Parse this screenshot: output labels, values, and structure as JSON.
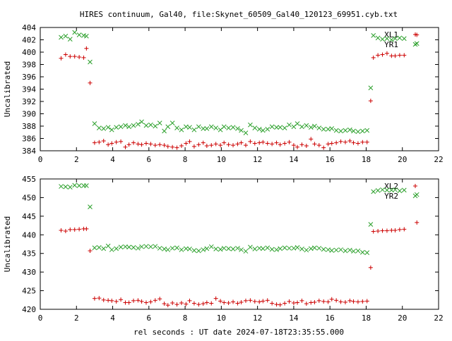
{
  "figure_title": "HIRES continuum, Gal40, file:Skynet_60509_Gal40_120123_69951.cyb.txt",
  "xlabel": "rel seconds : UT date 2024-07-18T23:35:55.000",
  "colors": {
    "XL": "#cc0000",
    "YR": "#2ca02c",
    "axis": "#000000",
    "text": "#000000"
  },
  "chart_data": [
    {
      "type": "scatter",
      "title": "",
      "xlabel": "",
      "ylabel": "Uncalibrated",
      "xlim": [
        0,
        22
      ],
      "ylim": [
        384,
        404
      ],
      "xticks": [
        0,
        2,
        4,
        6,
        8,
        10,
        12,
        14,
        16,
        18,
        20,
        22
      ],
      "yticks": [
        384,
        386,
        388,
        390,
        392,
        394,
        396,
        398,
        400,
        402,
        404
      ],
      "legend": "top-right",
      "grid": false,
      "series": [
        {
          "name": "XL1",
          "marker": "plus",
          "color": "#cc0000",
          "x": [
            1.15,
            1.4,
            1.65,
            1.9,
            2.15,
            2.4,
            2.55,
            2.75,
            3.0,
            3.25,
            3.5,
            3.75,
            3.95,
            4.2,
            4.45,
            4.7,
            4.9,
            5.15,
            5.4,
            5.6,
            5.85,
            6.1,
            6.35,
            6.6,
            6.85,
            7.05,
            7.3,
            7.55,
            7.8,
            8.05,
            8.25,
            8.5,
            8.75,
            9.0,
            9.2,
            9.45,
            9.7,
            9.95,
            10.15,
            10.4,
            10.65,
            10.9,
            11.1,
            11.35,
            11.6,
            11.85,
            12.1,
            12.3,
            12.55,
            12.8,
            13.05,
            13.25,
            13.5,
            13.75,
            14.0,
            14.2,
            14.45,
            14.7,
            14.95,
            15.15,
            15.4,
            15.65,
            15.9,
            16.1,
            16.35,
            16.6,
            16.85,
            17.1,
            17.3,
            17.55,
            17.8,
            18.05,
            18.25,
            18.4,
            18.65,
            18.9,
            19.15,
            19.4,
            19.6,
            19.85,
            20.1,
            20.8
          ],
          "y": [
            399.0,
            399.6,
            399.3,
            399.3,
            399.2,
            399.1,
            400.6,
            395.0,
            385.3,
            385.4,
            385.6,
            385.0,
            385.2,
            385.4,
            385.5,
            384.6,
            385.0,
            385.3,
            385.1,
            385.0,
            385.2,
            385.1,
            384.9,
            385.0,
            384.9,
            384.7,
            384.6,
            384.5,
            384.8,
            385.2,
            385.5,
            384.7,
            385.0,
            385.3,
            384.8,
            384.9,
            385.1,
            384.9,
            385.3,
            385.0,
            384.9,
            385.1,
            385.3,
            384.9,
            385.5,
            385.2,
            385.3,
            385.4,
            385.2,
            385.1,
            385.3,
            385.0,
            385.2,
            385.4,
            384.9,
            384.6,
            385.0,
            384.8,
            385.9,
            385.1,
            384.9,
            384.5,
            385.1,
            385.2,
            385.3,
            385.5,
            385.4,
            385.6,
            385.3,
            385.2,
            385.4,
            385.4,
            392.1,
            399.1,
            399.5,
            399.6,
            399.8,
            399.4,
            399.4,
            399.5,
            399.5,
            402.8
          ]
        },
        {
          "name": "YR1",
          "marker": "cross",
          "color": "#2ca02c",
          "x": [
            1.15,
            1.4,
            1.65,
            1.9,
            2.15,
            2.4,
            2.55,
            2.75,
            3.0,
            3.25,
            3.5,
            3.75,
            3.95,
            4.2,
            4.45,
            4.7,
            4.9,
            5.15,
            5.4,
            5.6,
            5.85,
            6.1,
            6.35,
            6.6,
            6.85,
            7.05,
            7.3,
            7.55,
            7.8,
            8.05,
            8.25,
            8.5,
            8.75,
            9.0,
            9.2,
            9.45,
            9.7,
            9.95,
            10.15,
            10.4,
            10.65,
            10.9,
            11.1,
            11.35,
            11.6,
            11.85,
            12.1,
            12.3,
            12.55,
            12.8,
            13.05,
            13.25,
            13.5,
            13.75,
            14.0,
            14.2,
            14.45,
            14.7,
            14.95,
            15.15,
            15.4,
            15.65,
            15.9,
            16.1,
            16.35,
            16.6,
            16.85,
            17.1,
            17.3,
            17.55,
            17.8,
            18.05,
            18.25,
            18.4,
            18.65,
            18.9,
            19.15,
            19.4,
            19.6,
            19.85,
            20.1,
            20.8
          ],
          "y": [
            402.4,
            402.6,
            402.1,
            403.2,
            402.8,
            402.7,
            402.6,
            398.4,
            388.4,
            387.7,
            387.6,
            387.8,
            387.4,
            387.8,
            387.9,
            388.1,
            387.9,
            388.1,
            388.3,
            388.7,
            388.1,
            388.2,
            388.0,
            388.5,
            387.2,
            387.9,
            388.5,
            387.7,
            387.4,
            387.9,
            387.8,
            387.4,
            387.9,
            387.6,
            387.6,
            387.9,
            387.7,
            387.4,
            387.9,
            387.7,
            387.8,
            387.6,
            387.3,
            386.9,
            388.2,
            387.7,
            387.5,
            387.3,
            387.5,
            387.9,
            387.8,
            387.8,
            387.7,
            388.2,
            387.9,
            388.4,
            387.9,
            388.1,
            387.8,
            388.0,
            387.7,
            387.5,
            387.5,
            387.6,
            387.3,
            387.2,
            387.3,
            387.4,
            387.2,
            387.1,
            387.2,
            387.3,
            394.2,
            402.7,
            402.3,
            402.1,
            402.2,
            402.0,
            402.2,
            402.3,
            402.2,
            401.4
          ]
        }
      ]
    },
    {
      "type": "scatter",
      "title": "",
      "xlabel": "rel seconds : UT date 2024-07-18T23:35:55.000",
      "ylabel": "Uncalibrated",
      "xlim": [
        0,
        22
      ],
      "ylim": [
        420,
        455
      ],
      "xticks": [
        0,
        2,
        4,
        6,
        8,
        10,
        12,
        14,
        16,
        18,
        20,
        22
      ],
      "yticks": [
        420,
        425,
        430,
        435,
        440,
        445,
        450,
        455
      ],
      "legend": "top-right",
      "grid": false,
      "series": [
        {
          "name": "XL2",
          "marker": "plus",
          "color": "#cc0000",
          "x": [
            1.15,
            1.4,
            1.65,
            1.9,
            2.15,
            2.4,
            2.55,
            2.75,
            3.0,
            3.25,
            3.5,
            3.75,
            3.95,
            4.2,
            4.45,
            4.7,
            4.9,
            5.15,
            5.4,
            5.6,
            5.85,
            6.1,
            6.35,
            6.6,
            6.85,
            7.05,
            7.3,
            7.55,
            7.8,
            8.05,
            8.25,
            8.5,
            8.75,
            9.0,
            9.2,
            9.45,
            9.7,
            9.95,
            10.15,
            10.4,
            10.65,
            10.9,
            11.1,
            11.35,
            11.6,
            11.85,
            12.1,
            12.3,
            12.55,
            12.8,
            13.05,
            13.25,
            13.5,
            13.75,
            14.0,
            14.2,
            14.45,
            14.7,
            14.95,
            15.15,
            15.4,
            15.65,
            15.9,
            16.1,
            16.35,
            16.6,
            16.85,
            17.1,
            17.3,
            17.55,
            17.8,
            18.05,
            18.25,
            18.4,
            18.65,
            18.9,
            19.15,
            19.4,
            19.6,
            19.85,
            20.1,
            20.8
          ],
          "y": [
            441.2,
            441.0,
            441.4,
            441.4,
            441.5,
            441.6,
            441.6,
            435.7,
            422.9,
            423.0,
            422.5,
            422.4,
            422.3,
            422.1,
            422.6,
            421.8,
            421.8,
            422.3,
            422.4,
            422.1,
            421.8,
            422.0,
            422.4,
            422.8,
            421.5,
            421.1,
            421.7,
            421.3,
            421.7,
            421.4,
            422.3,
            421.6,
            421.3,
            421.5,
            421.8,
            421.6,
            422.9,
            422.2,
            421.8,
            421.7,
            422.0,
            421.6,
            421.9,
            422.3,
            422.4,
            422.1,
            422.0,
            422.2,
            422.4,
            421.6,
            421.3,
            421.2,
            421.6,
            422.1,
            421.7,
            421.8,
            422.3,
            421.5,
            421.8,
            421.9,
            422.3,
            422.1,
            422.0,
            422.7,
            422.4,
            422.0,
            421.9,
            422.3,
            422.1,
            422.0,
            422.1,
            422.2,
            431.2,
            440.9,
            441.0,
            441.1,
            441.1,
            441.2,
            441.2,
            441.4,
            441.5,
            443.3
          ]
        },
        {
          "name": "YR2",
          "marker": "cross",
          "color": "#2ca02c",
          "x": [
            1.15,
            1.4,
            1.65,
            1.9,
            2.15,
            2.4,
            2.55,
            2.75,
            3.0,
            3.25,
            3.5,
            3.75,
            3.95,
            4.2,
            4.45,
            4.7,
            4.9,
            5.15,
            5.4,
            5.6,
            5.85,
            6.1,
            6.35,
            6.6,
            6.85,
            7.05,
            7.3,
            7.55,
            7.8,
            8.05,
            8.25,
            8.5,
            8.75,
            9.0,
            9.2,
            9.45,
            9.7,
            9.95,
            10.15,
            10.4,
            10.65,
            10.9,
            11.1,
            11.35,
            11.6,
            11.85,
            12.1,
            12.3,
            12.55,
            12.8,
            13.05,
            13.25,
            13.5,
            13.75,
            14.0,
            14.2,
            14.45,
            14.7,
            14.95,
            15.15,
            15.4,
            15.65,
            15.9,
            16.1,
            16.35,
            16.6,
            16.85,
            17.1,
            17.3,
            17.55,
            17.8,
            18.05,
            18.25,
            18.4,
            18.65,
            18.9,
            19.15,
            19.4,
            19.6,
            19.85,
            20.1,
            20.8
          ],
          "y": [
            453.0,
            452.9,
            452.8,
            453.3,
            453.2,
            453.2,
            453.2,
            447.5,
            436.5,
            436.6,
            436.3,
            437.0,
            436.0,
            436.3,
            436.7,
            436.8,
            436.7,
            436.6,
            436.4,
            436.8,
            436.9,
            436.8,
            436.9,
            436.4,
            436.2,
            436.0,
            436.4,
            436.5,
            436.0,
            436.3,
            436.2,
            435.8,
            435.7,
            436.0,
            436.3,
            436.8,
            436.2,
            436.1,
            436.4,
            436.3,
            436.2,
            436.4,
            436.0,
            435.6,
            436.7,
            436.2,
            436.4,
            436.3,
            436.5,
            436.1,
            436.0,
            436.3,
            436.5,
            436.4,
            436.4,
            436.6,
            436.2,
            435.9,
            436.3,
            436.5,
            436.4,
            436.1,
            436.0,
            435.8,
            435.9,
            436.0,
            435.7,
            435.9,
            435.6,
            435.7,
            435.3,
            435.2,
            442.8,
            451.6,
            451.9,
            452.1,
            452.0,
            452.0,
            452.1,
            451.8,
            452.0,
            450.8
          ]
        }
      ]
    }
  ]
}
